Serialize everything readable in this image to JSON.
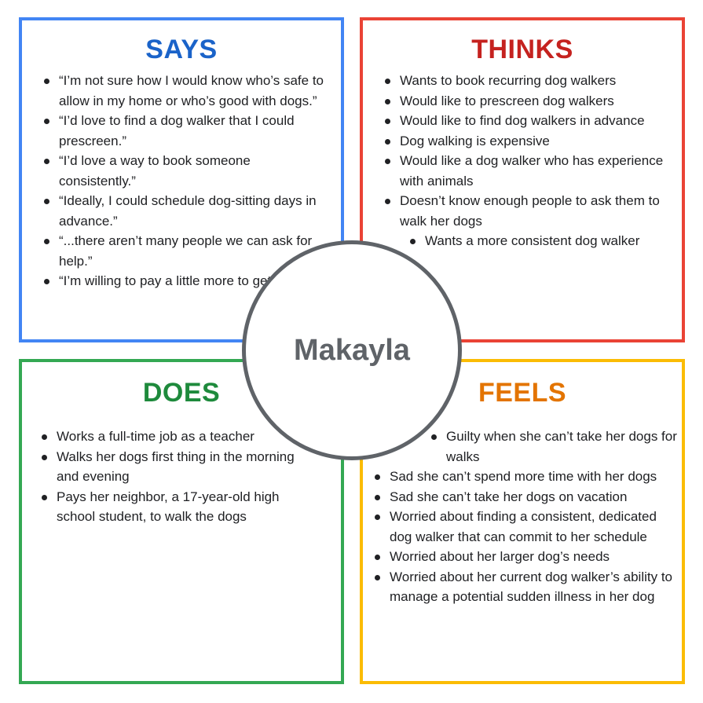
{
  "colors": {
    "says": "#4285f4",
    "says_title": "#1a63c9",
    "thinks": "#ea4335",
    "thinks_title": "#c5221f",
    "does": "#34a853",
    "does_title": "#1e8a3c",
    "feels": "#fbbc04",
    "feels_title": "#e37400",
    "center": "#5f6368"
  },
  "center": {
    "name": "Makayla"
  },
  "says": {
    "title": "SAYS",
    "items": [
      "“I’m not sure how I would know who’s safe to allow in my home or who’s good with dogs.”",
      "“I’d love to find a dog walker that I could prescreen.”",
      "“I’d love a way to book someone consistently.”",
      "“Ideally, I could schedule dog-sitting days in advance.”",
      "“...there aren’t many people we can ask for help.”",
      "“I’m willing to pay a little more to get...this.”"
    ]
  },
  "thinks": {
    "title": "THINKS",
    "items": [
      "Wants to book recurring dog walkers",
      "Would like to prescreen dog walkers",
      "Would like to find dog walkers in advance",
      "Dog walking is expensive",
      "Would like a dog walker who has experience with animals",
      "Doesn’t know enough people to ask them to walk her dogs",
      "Wants a more consistent dog walker"
    ]
  },
  "does": {
    "title": "DOES",
    "items": [
      "Works a full-time job as a teacher",
      "Walks her dogs first thing in the morning and evening",
      "Pays her neighbor, a 17-year-old high school student, to walk the dogs"
    ]
  },
  "feels": {
    "title": "FEELS",
    "items": [
      "Guilty when she can’t take her dogs for walks",
      "Sad she can’t spend more time with her dogs",
      "Sad she can’t take her dogs on vacation",
      "Worried about finding a consistent, dedicated dog walker that can commit to her schedule",
      "Worried about her larger dog’s needs",
      "Worried about her current dog walker’s ability to manage a potential sudden illness in her dog"
    ]
  }
}
